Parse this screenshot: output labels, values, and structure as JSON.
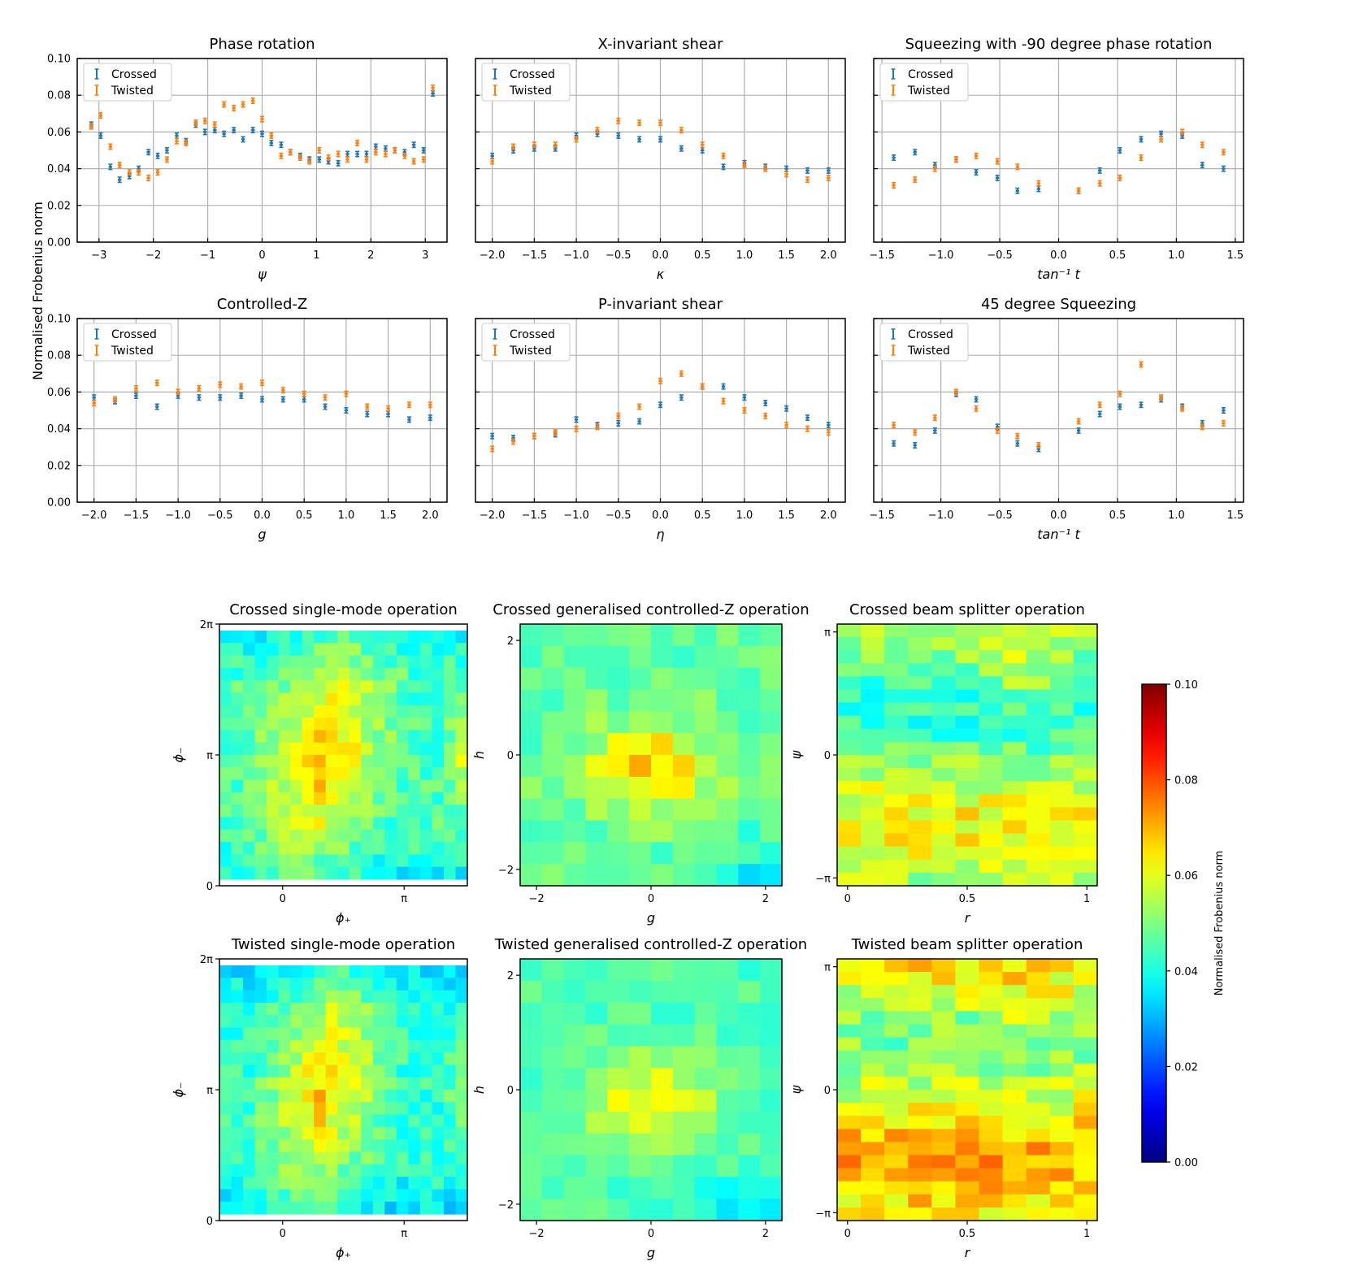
{
  "ylabel_shared": "Normalised Frobenius norm",
  "colorbar": {
    "label": "Normalised Frobenius norm",
    "min": 0.0,
    "max": 0.1,
    "ticks": [
      "0.00",
      "0.02",
      "0.04",
      "0.06",
      "0.08",
      "0.10"
    ],
    "colormap": "jet"
  },
  "series_colors": {
    "Crossed": "#1f77b4",
    "Twisted": "#ff7f0e"
  },
  "chart_data": [
    {
      "type": "scatter",
      "title": "Phase rotation",
      "xlabel": "ψ",
      "xlim": [
        -3.4,
        3.4
      ],
      "ylim": [
        0,
        0.1
      ],
      "xticks": [
        -3,
        -2,
        -1,
        0,
        1,
        2,
        3
      ],
      "yticks": [
        "0.00",
        "0.02",
        "0.04",
        "0.06",
        "0.08",
        "0.10"
      ],
      "legend": "top-left",
      "x": [
        -3.14,
        -2.97,
        -2.79,
        -2.62,
        -2.44,
        -2.27,
        -2.09,
        -1.92,
        -1.75,
        -1.57,
        -1.4,
        -1.22,
        -1.05,
        -0.87,
        -0.7,
        -0.52,
        -0.35,
        -0.17,
        0.0,
        0.17,
        0.35,
        0.52,
        0.7,
        0.87,
        1.05,
        1.22,
        1.4,
        1.57,
        1.75,
        1.92,
        2.09,
        2.27,
        2.44,
        2.62,
        2.79,
        2.97,
        3.14
      ],
      "series": [
        {
          "name": "Crossed",
          "values": [
            0.064,
            0.058,
            0.041,
            0.034,
            0.036,
            0.04,
            0.049,
            0.047,
            0.05,
            0.058,
            0.055,
            0.064,
            0.06,
            0.061,
            0.059,
            0.061,
            0.056,
            0.061,
            0.059,
            0.054,
            0.053,
            0.049,
            0.047,
            0.045,
            0.045,
            0.044,
            0.043,
            0.048,
            0.048,
            0.048,
            0.052,
            0.051,
            0.05,
            0.049,
            0.053,
            0.05,
            0.081
          ]
        },
        {
          "name": "Twisted",
          "values": [
            0.063,
            0.069,
            0.052,
            0.042,
            0.038,
            0.038,
            0.035,
            0.038,
            0.045,
            0.055,
            0.054,
            0.065,
            0.066,
            0.064,
            0.075,
            0.073,
            0.075,
            0.077,
            0.067,
            0.058,
            0.047,
            0.049,
            0.046,
            0.044,
            0.05,
            0.046,
            0.048,
            0.045,
            0.054,
            0.045,
            0.049,
            0.048,
            0.05,
            0.047,
            0.044,
            0.045,
            0.084
          ]
        }
      ]
    },
    {
      "type": "scatter",
      "title": "X-invariant shear",
      "xlabel": "κ",
      "xlim": [
        -2.2,
        2.2
      ],
      "ylim": [
        0,
        0.1
      ],
      "xticks": [
        "−2.0",
        "−1.5",
        "−1.0",
        "−0.5",
        "0.0",
        "0.5",
        "1.0",
        "1.5",
        "2.0"
      ],
      "legend": "top-left",
      "x": [
        -2.0,
        -1.75,
        -1.5,
        -1.25,
        -1.0,
        -0.75,
        -0.5,
        -0.25,
        0.0,
        0.25,
        0.5,
        0.75,
        1.0,
        1.25,
        1.5,
        1.75,
        2.0
      ],
      "series": [
        {
          "name": "Crossed",
          "values": [
            0.047,
            0.05,
            0.051,
            0.051,
            0.058,
            0.059,
            0.058,
            0.056,
            0.056,
            0.051,
            0.05,
            0.041,
            0.043,
            0.041,
            0.04,
            0.039,
            0.039
          ]
        },
        {
          "name": "Twisted",
          "values": [
            0.044,
            0.052,
            0.053,
            0.053,
            0.056,
            0.061,
            0.066,
            0.065,
            0.065,
            0.061,
            0.053,
            0.047,
            0.042,
            0.04,
            0.037,
            0.034,
            0.035
          ]
        }
      ]
    },
    {
      "type": "scatter",
      "title": "Squeezing with -90 degree phase rotation",
      "xlabel": "tan⁻¹ t",
      "xlim": [
        -1.57,
        1.57
      ],
      "ylim": [
        0,
        0.1
      ],
      "xticks": [
        "−1.5",
        "−1.0",
        "−0.5",
        "0.0",
        "0.5",
        "1.0",
        "1.5"
      ],
      "legend": "top-left",
      "x": [
        -1.4,
        -1.22,
        -1.05,
        -0.87,
        -0.7,
        -0.52,
        -0.35,
        -0.17,
        0.17,
        0.35,
        0.52,
        0.7,
        0.87,
        1.05,
        1.22,
        1.4
      ],
      "series": [
        {
          "name": "Crossed",
          "values": [
            0.046,
            0.049,
            0.042,
            0.045,
            0.038,
            0.035,
            0.028,
            0.029,
            0.028,
            0.039,
            0.05,
            0.056,
            0.059,
            0.058,
            0.042,
            0.04
          ]
        },
        {
          "name": "Twisted",
          "values": [
            0.031,
            0.034,
            0.04,
            0.045,
            0.047,
            0.044,
            0.041,
            0.032,
            0.028,
            0.032,
            0.035,
            0.046,
            0.056,
            0.06,
            0.053,
            0.049
          ]
        }
      ]
    },
    {
      "type": "scatter",
      "title": "Controlled-Z",
      "xlabel": "g",
      "xlim": [
        -2.2,
        2.2
      ],
      "ylim": [
        0,
        0.1
      ],
      "xticks": [
        "−2.0",
        "−1.5",
        "−1.0",
        "−0.5",
        "0.0",
        "0.5",
        "1.0",
        "1.5",
        "2.0"
      ],
      "legend": "top-left",
      "x": [
        -2.0,
        -1.75,
        -1.5,
        -1.25,
        -1.0,
        -0.75,
        -0.5,
        -0.25,
        0.0,
        0.25,
        0.5,
        0.75,
        1.0,
        1.25,
        1.5,
        1.75,
        2.0
      ],
      "series": [
        {
          "name": "Crossed",
          "values": [
            0.057,
            0.055,
            0.058,
            0.052,
            0.058,
            0.057,
            0.057,
            0.058,
            0.056,
            0.056,
            0.056,
            0.052,
            0.05,
            0.048,
            0.048,
            0.045,
            0.046
          ]
        },
        {
          "name": "Twisted",
          "values": [
            0.054,
            0.056,
            0.062,
            0.065,
            0.06,
            0.062,
            0.064,
            0.063,
            0.065,
            0.061,
            0.059,
            0.057,
            0.059,
            0.052,
            0.051,
            0.053,
            0.053
          ]
        }
      ]
    },
    {
      "type": "scatter",
      "title": "P-invariant shear",
      "xlabel": "η",
      "xlim": [
        -2.2,
        2.2
      ],
      "ylim": [
        0,
        0.1
      ],
      "xticks": [
        "−2.0",
        "−1.5",
        "−1.0",
        "−0.5",
        "0.0",
        "0.5",
        "1.0",
        "1.5",
        "2.0"
      ],
      "legend": "top-left",
      "x": [
        -2.0,
        -1.75,
        -1.5,
        -1.25,
        -1.0,
        -0.75,
        -0.5,
        -0.25,
        0.0,
        0.25,
        0.5,
        0.75,
        1.0,
        1.25,
        1.5,
        1.75,
        2.0
      ],
      "series": [
        {
          "name": "Crossed",
          "values": [
            0.036,
            0.035,
            0.036,
            0.037,
            0.045,
            0.042,
            0.043,
            0.044,
            0.053,
            0.057,
            0.063,
            0.063,
            0.057,
            0.054,
            0.051,
            0.046,
            0.042
          ]
        },
        {
          "name": "Twisted",
          "values": [
            0.029,
            0.033,
            0.036,
            0.038,
            0.04,
            0.041,
            0.047,
            0.052,
            0.066,
            0.07,
            0.063,
            0.055,
            0.05,
            0.047,
            0.042,
            0.04,
            0.038
          ]
        }
      ]
    },
    {
      "type": "scatter",
      "title": "45 degree Squeezing",
      "xlabel": "tan⁻¹ t",
      "xlim": [
        -1.57,
        1.57
      ],
      "ylim": [
        0,
        0.1
      ],
      "xticks": [
        "−1.5",
        "−1.0",
        "−0.5",
        "0.0",
        "0.5",
        "1.0",
        "1.5"
      ],
      "legend": "top-left",
      "x": [
        -1.4,
        -1.22,
        -1.05,
        -0.87,
        -0.7,
        -0.52,
        -0.35,
        -0.17,
        0.17,
        0.35,
        0.52,
        0.7,
        0.87,
        1.05,
        1.22,
        1.4
      ],
      "series": [
        {
          "name": "Crossed",
          "values": [
            0.032,
            0.031,
            0.039,
            0.059,
            0.056,
            0.041,
            0.032,
            0.029,
            0.039,
            0.048,
            0.052,
            0.053,
            0.056,
            0.052,
            0.043,
            0.05
          ]
        },
        {
          "name": "Twisted",
          "values": [
            0.042,
            0.038,
            0.046,
            0.06,
            0.051,
            0.039,
            0.036,
            0.031,
            0.044,
            0.053,
            0.059,
            0.075,
            0.057,
            0.051,
            0.041,
            0.043
          ]
        }
      ]
    },
    {
      "type": "heatmap",
      "title": "Crossed single-mode operation",
      "xlabel": "ϕ₊",
      "ylabel": "ϕ₋",
      "xticks": [
        "0",
        "π"
      ],
      "yticks": [
        "0",
        "π",
        "2π"
      ],
      "grid_size": [
        21,
        20
      ],
      "value_range": [
        0.0,
        0.1
      ],
      "profile": {
        "kind": "fanVertical",
        "base": 0.045,
        "amp": 0.025,
        "noise": 0.006,
        "seed": 11
      }
    },
    {
      "type": "heatmap",
      "title": "Crossed generalised controlled-Z operation",
      "xlabel": "g",
      "ylabel": "h",
      "xticks": [
        "−2",
        "0",
        "2"
      ],
      "yticks": [
        "−2",
        "0",
        "2"
      ],
      "grid_size": [
        12,
        12
      ],
      "value_range": [
        0.0,
        0.1
      ],
      "profile": {
        "kind": "centralBlob",
        "base": 0.047,
        "amp": 0.02,
        "noise": 0.005,
        "seed": 23
      }
    },
    {
      "type": "heatmap",
      "title": "Crossed beam splitter operation",
      "xlabel": "r",
      "ylabel": "ψ",
      "xticks": [
        "0",
        "0.5",
        "1"
      ],
      "yticks": [
        "−π",
        "0",
        "π"
      ],
      "grid_size": [
        11,
        20
      ],
      "value_range": [
        0.0,
        0.1
      ],
      "profile": {
        "kind": "bands",
        "base": 0.052,
        "amp": 0.015,
        "noise": 0.007,
        "seed": 37
      }
    },
    {
      "type": "heatmap",
      "title": "Twisted single-mode operation",
      "xlabel": "ϕ₊",
      "ylabel": "ϕ₋",
      "xticks": [
        "0",
        "π"
      ],
      "yticks": [
        "0",
        "π",
        "2π"
      ],
      "grid_size": [
        21,
        20
      ],
      "value_range": [
        0.0,
        0.1
      ],
      "profile": {
        "kind": "fanVertical",
        "base": 0.042,
        "amp": 0.027,
        "noise": 0.006,
        "seed": 53
      }
    },
    {
      "type": "heatmap",
      "title": "Twisted generalised controlled-Z operation",
      "xlabel": "g",
      "ylabel": "h",
      "xticks": [
        "−2",
        "0",
        "2"
      ],
      "yticks": [
        "−2",
        "0",
        "2"
      ],
      "grid_size": [
        12,
        12
      ],
      "value_range": [
        0.0,
        0.1
      ],
      "profile": {
        "kind": "centralBlob",
        "base": 0.045,
        "amp": 0.018,
        "noise": 0.004,
        "seed": 71
      }
    },
    {
      "type": "heatmap",
      "title": "Twisted beam splitter operation",
      "xlabel": "r",
      "ylabel": "ψ",
      "xticks": [
        "0",
        "0.5",
        "1"
      ],
      "yticks": [
        "−π",
        "0",
        "π"
      ],
      "grid_size": [
        11,
        20
      ],
      "value_range": [
        0.0,
        0.1
      ],
      "profile": {
        "kind": "bands",
        "base": 0.06,
        "amp": 0.015,
        "noise": 0.008,
        "seed": 89
      }
    }
  ]
}
